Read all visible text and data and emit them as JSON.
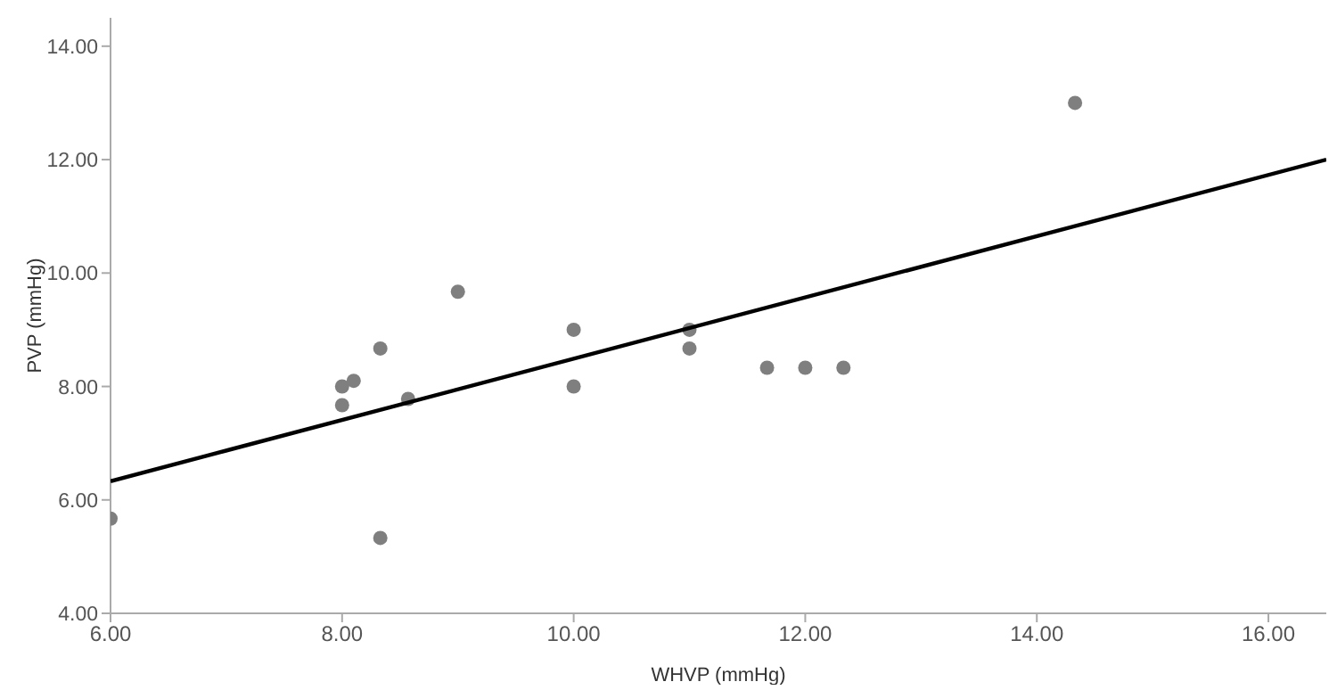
{
  "chart_data": {
    "type": "scatter",
    "xlabel": "WHVP (mmHg)",
    "ylabel": "PVP (mmHg)",
    "xlim": [
      6,
      16.5
    ],
    "ylim": [
      4,
      14.5
    ],
    "xticks": [
      {
        "value": 6,
        "label": "6.00"
      },
      {
        "value": 8,
        "label": "8.00"
      },
      {
        "value": 10,
        "label": "10.00"
      },
      {
        "value": 12,
        "label": "12.00"
      },
      {
        "value": 14,
        "label": "14.00"
      },
      {
        "value": 16,
        "label": "16.00"
      }
    ],
    "yticks": [
      {
        "value": 4,
        "label": "4.00"
      },
      {
        "value": 6,
        "label": "6.00"
      },
      {
        "value": 8,
        "label": "8.00"
      },
      {
        "value": 10,
        "label": "10.00"
      },
      {
        "value": 12,
        "label": "12.00"
      },
      {
        "value": 14,
        "label": "14.00"
      }
    ],
    "grid": false,
    "legend": false,
    "marker": "circle",
    "series": [
      {
        "color": "#7f7f7f",
        "x": [
          6,
          8,
          8,
          8.1,
          8.33,
          8.33,
          8.57,
          9,
          10,
          10,
          11,
          11,
          11.67,
          12,
          12.33,
          14.33
        ],
        "values": [
          5.67,
          8,
          7.67,
          8.1,
          8.67,
          5.33,
          7.78,
          9.67,
          9,
          8,
          9,
          8.67,
          8.33,
          8.33,
          8.33,
          13
        ]
      },
      {
        "type": "line",
        "color": "#000000",
        "x": [
          6,
          16.5
        ],
        "values": [
          6.33,
          12
        ],
        "marker": "none",
        "line_style": "solid"
      }
    ]
  }
}
